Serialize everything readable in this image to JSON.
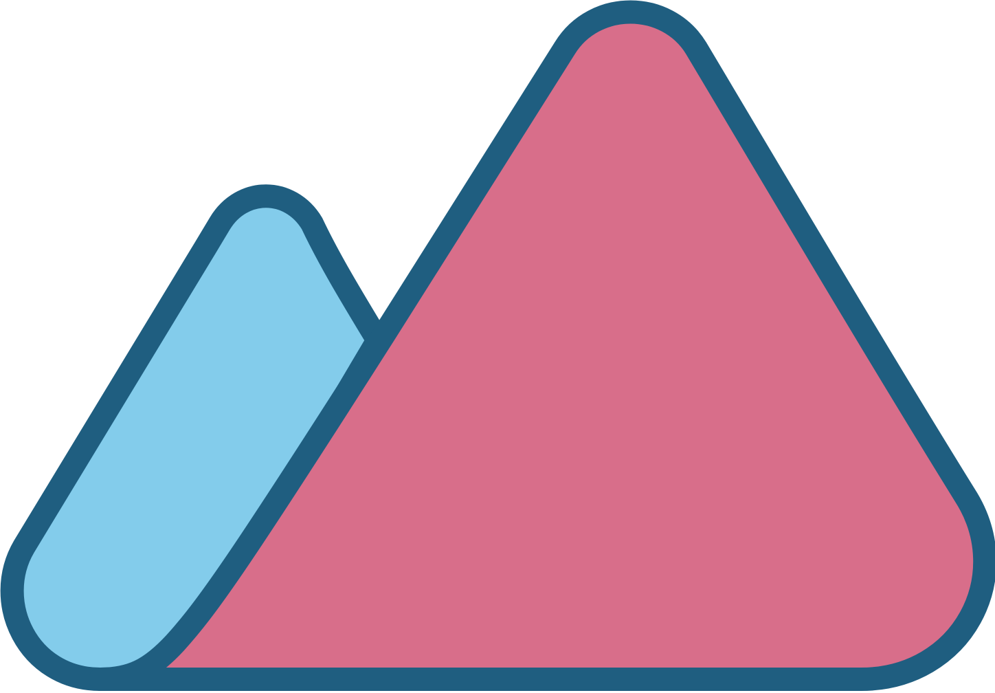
{
  "logo": {
    "icon": "mountains-icon",
    "colors": {
      "outline": "#1F5E80",
      "left_mountain_fill": "#83CCEB",
      "right_mountain_fill": "#D86E8A",
      "background": "#FFFFFF"
    }
  }
}
